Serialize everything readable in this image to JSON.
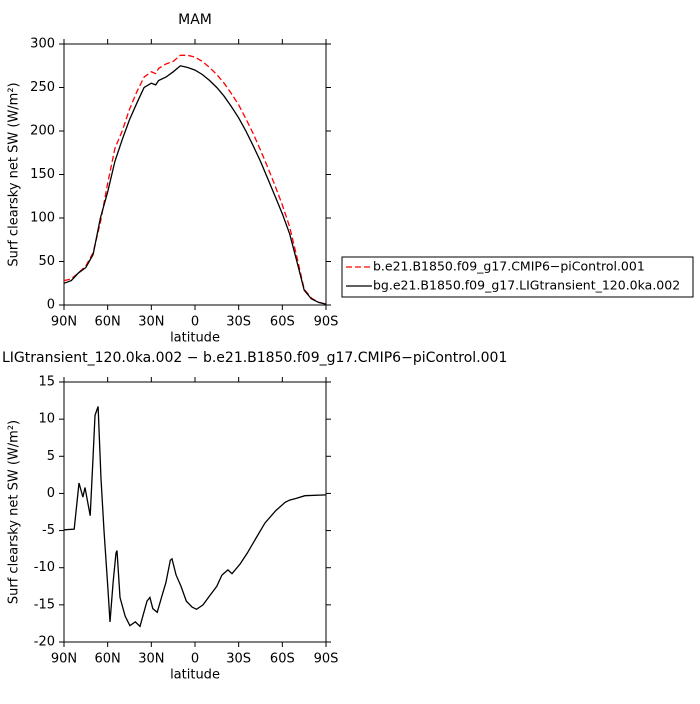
{
  "chart_data": [
    {
      "type": "line",
      "title": "MAM",
      "xlabel": "latitude",
      "ylabel": "Surf clearsky net SW (W/m²)",
      "xlim": [
        90,
        -90
      ],
      "xticks": [
        {
          "value": 90,
          "label": "90N"
        },
        {
          "value": 60,
          "label": "60N"
        },
        {
          "value": 30,
          "label": "30N"
        },
        0,
        {
          "value": -30,
          "label": "30S"
        },
        {
          "value": -60,
          "label": "60S"
        },
        {
          "value": -90,
          "label": "90S"
        }
      ],
      "ylim": [
        0,
        300
      ],
      "yticks": [
        0,
        50,
        100,
        150,
        200,
        250,
        300
      ],
      "legend": "right",
      "x": [
        90,
        85,
        80,
        75,
        70,
        65,
        60,
        55,
        50,
        45,
        40,
        35,
        30,
        27,
        25,
        20,
        15,
        10,
        5,
        0,
        -5,
        -10,
        -15,
        -20,
        -25,
        -30,
        -35,
        -40,
        -45,
        -50,
        -55,
        -60,
        -65,
        -70,
        -75,
        -80,
        -85,
        -90
      ],
      "series": [
        {
          "name": "b.e21.B1850.f09_g17.CMIP6−piControl.001",
          "color": "#ff0000",
          "dash": true,
          "values": [
            28,
            30,
            37,
            45,
            60,
            95,
            140,
            180,
            200,
            225,
            245,
            262,
            268,
            266,
            272,
            277,
            280,
            287,
            287,
            285,
            280,
            273,
            265,
            255,
            243,
            230,
            214,
            197,
            178,
            158,
            137,
            115,
            90,
            55,
            18,
            8,
            3,
            1
          ]
        },
        {
          "name": "bg.e21.B1850.f09_g17.LIGtransient_120.0ka.002",
          "color": "#000000",
          "dash": false,
          "values": [
            25,
            28,
            37,
            43,
            58,
            100,
            130,
            165,
            190,
            213,
            232,
            250,
            255,
            253,
            258,
            262,
            268,
            275,
            273,
            270,
            265,
            258,
            250,
            240,
            228,
            215,
            200,
            183,
            165,
            145,
            125,
            105,
            82,
            50,
            17,
            7,
            3,
            1
          ]
        }
      ]
    },
    {
      "type": "line",
      "title": "LIGtransient_120.0ka.002 − b.e21.B1850.f09_g17.CMIP6−piControl.001",
      "xlabel": "latitude",
      "ylabel": "Surf clearsky net SW (W/m²)",
      "xlim": [
        90,
        -90
      ],
      "xticks": [
        {
          "value": 90,
          "label": "90N"
        },
        {
          "value": 60,
          "label": "60N"
        },
        {
          "value": 30,
          "label": "30N"
        },
        0,
        {
          "value": -30,
          "label": "30S"
        },
        {
          "value": -60,
          "label": "60S"
        },
        {
          "value": -90,
          "label": "90S"
        }
      ],
      "ylim": [
        -20,
        15
      ],
      "yticks": [
        -20,
        -15,
        -10,
        -5,
        0,
        5,
        10,
        15
      ],
      "x": [
        90,
        83,
        79.7,
        77,
        75.6,
        72,
        70,
        68.7,
        66.6,
        64.6,
        62.5,
        59.8,
        58.4,
        56.3,
        54.3,
        53.6,
        51.5,
        48,
        44.7,
        41,
        37.8,
        33,
        31,
        29,
        26,
        23,
        20,
        17,
        15.8,
        13,
        9.6,
        6,
        2,
        -1,
        -5.5,
        -10,
        -15,
        -18.5,
        -22.6,
        -25.4,
        -31,
        -36,
        -42,
        -48,
        -55.6,
        -62,
        -65,
        -69,
        -75.5,
        -90
      ],
      "series": [
        {
          "color": "#000000",
          "dash": false,
          "values": [
            -4.9,
            -4.8,
            1.4,
            -0.5,
            0.8,
            -3,
            5,
            10.5,
            11.7,
            2,
            -5,
            -13,
            -17.3,
            -12,
            -8,
            -7.7,
            -14,
            -16.5,
            -17.8,
            -17.3,
            -17.9,
            -14.5,
            -14,
            -15.5,
            -16,
            -14,
            -12,
            -9,
            -8.8,
            -11,
            -12.5,
            -14.5,
            -15.3,
            -15.6,
            -15,
            -13.8,
            -12.5,
            -11,
            -10.3,
            -10.8,
            -9.5,
            -8,
            -6,
            -4,
            -2.3,
            -1.2,
            -0.9,
            -0.7,
            -0.3,
            -0.2
          ]
        }
      ]
    }
  ]
}
